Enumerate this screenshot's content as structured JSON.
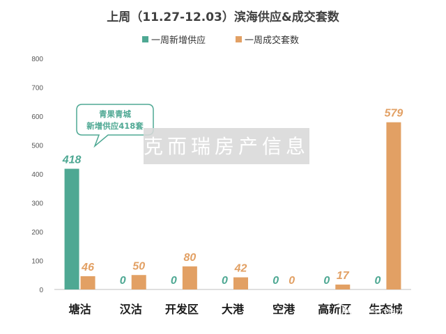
{
  "chart_data": {
    "type": "bar",
    "title": "上周（11.27-12.03）滨海供应&成交套数",
    "categories": [
      "塘沽",
      "汉沽",
      "开发区",
      "大港",
      "空港",
      "高新区",
      "生态城"
    ],
    "series": [
      {
        "name": "一周新增供应",
        "color": "#4ea893",
        "values": [
          418,
          0,
          0,
          0,
          0,
          0,
          0
        ]
      },
      {
        "name": "一周成交套数",
        "color": "#e2a064",
        "values": [
          46,
          50,
          80,
          42,
          0,
          17,
          579
        ]
      }
    ],
    "ylim": [
      0,
      800
    ],
    "yticks": [
      0,
      100,
      200,
      300,
      400,
      500,
      600,
      700,
      800
    ],
    "legend_position": "top-center",
    "grid": false,
    "annotation": {
      "lines": [
        "青果青城",
        "新增供应418套"
      ]
    }
  },
  "watermark": "克而瑞房产信息",
  "brand_overlay": "微信号: tianjinzu"
}
